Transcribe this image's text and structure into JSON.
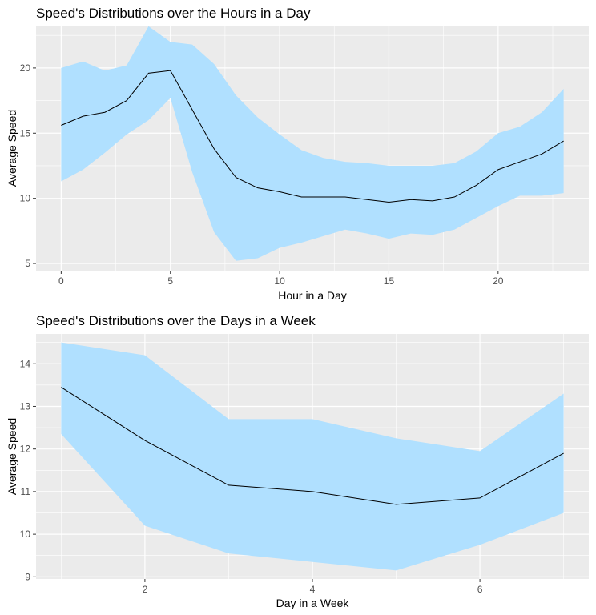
{
  "chart_data": [
    {
      "type": "area",
      "title": "Speed's Distributions over the Hours in a Day",
      "xlabel": "Hour in a Day",
      "ylabel": "Average Speed",
      "xlim": [
        -1.15,
        24.15
      ],
      "ylim": [
        4.45,
        23.25
      ],
      "xticks": [
        0,
        5,
        10,
        15,
        20
      ],
      "yticks": [
        5,
        10,
        15,
        20
      ],
      "grid": true,
      "band_color": "#b0e0ff",
      "line_color": "#000000",
      "panel_color": "#ebebeb",
      "series": [
        {
          "x": [
            0,
            1,
            2,
            3,
            4,
            5,
            6,
            7,
            8,
            9,
            10,
            11,
            12,
            13,
            14,
            15,
            16,
            17,
            18,
            19,
            20,
            21,
            22,
            23
          ],
          "mean": [
            15.6,
            16.3,
            16.6,
            17.5,
            19.6,
            19.8,
            16.8,
            13.8,
            11.6,
            10.8,
            10.5,
            10.1,
            10.1,
            10.1,
            9.9,
            9.7,
            9.9,
            9.8,
            10.1,
            11.0,
            12.2,
            12.8,
            13.4,
            14.4
          ],
          "upper": [
            20.0,
            20.5,
            19.8,
            20.2,
            23.2,
            22.0,
            21.8,
            20.3,
            17.9,
            16.2,
            14.9,
            13.7,
            13.1,
            12.8,
            12.7,
            12.5,
            12.5,
            12.5,
            12.7,
            13.6,
            15.0,
            15.5,
            16.6,
            18.4
          ],
          "lower": [
            11.3,
            12.2,
            13.5,
            14.9,
            16.0,
            17.7,
            12.0,
            7.4,
            5.2,
            5.4,
            6.2,
            6.6,
            7.1,
            7.6,
            7.3,
            6.9,
            7.3,
            7.2,
            7.6,
            8.5,
            9.4,
            10.2,
            10.2,
            10.4
          ]
        }
      ]
    },
    {
      "type": "area",
      "title": "Speed's Distributions over the Days in a Week",
      "xlabel": "Day in a Week",
      "ylabel": "Average Speed",
      "xlim": [
        0.7,
        7.3
      ],
      "ylim": [
        8.95,
        14.7
      ],
      "xticks": [
        2,
        4,
        6
      ],
      "yticks": [
        9,
        10,
        11,
        12,
        13,
        14
      ],
      "grid": true,
      "band_color": "#b0e0ff",
      "line_color": "#000000",
      "panel_color": "#ebebeb",
      "series": [
        {
          "x": [
            1,
            2,
            3,
            4,
            5,
            6,
            7
          ],
          "mean": [
            13.45,
            12.2,
            11.15,
            11.0,
            10.7,
            10.85,
            11.9
          ],
          "upper": [
            14.5,
            14.2,
            12.7,
            12.7,
            12.25,
            11.95,
            13.3
          ],
          "lower": [
            12.35,
            10.2,
            9.55,
            9.35,
            9.15,
            9.75,
            10.5
          ]
        }
      ]
    }
  ]
}
